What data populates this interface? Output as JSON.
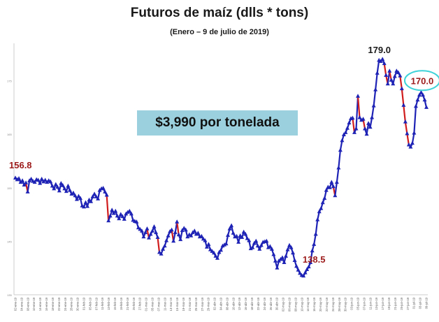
{
  "title": "Futuros de maíz (dlls * tons)",
  "subtitle": "(Enero – 9 de julio de 2019)",
  "price_note": "$3,990 por tonelada",
  "colors": {
    "line": "#1f23b5",
    "decline": "#d01c1c",
    "annot_dark_red": "#9c1a1a",
    "highlight_ring": "#3ed3d8",
    "box": "#9bd1de",
    "axis": "#cccccc"
  },
  "chart_data": {
    "type": "line",
    "title": "Futuros de maíz (dlls * tons)",
    "subtitle": "(Enero – 9 de julio de 2019)",
    "xlabel": "",
    "ylabel": "",
    "ylim": [
      135,
      182
    ],
    "yticks": [
      135,
      145,
      155,
      165,
      175
    ],
    "grid": false,
    "marker": "triangle",
    "note": "Descending segments drawn in red, others in blue",
    "x_tick_labels": [
      "02-ene-19",
      "04-ene-19",
      "08-ene-19",
      "10-ene-19",
      "14-ene-19",
      "16-ene-19",
      "18-ene-19",
      "22-ene-19",
      "24-ene-19",
      "28-ene-19",
      "30-ene-19",
      "01-feb-19",
      "05-feb-19",
      "07-feb-19",
      "11-feb-19",
      "13-feb-19",
      "15-feb-19",
      "19-feb-19",
      "21-feb-19",
      "25-feb-19",
      "27-feb-19",
      "01-mar-19",
      "05-mar-19",
      "07-mar-19",
      "11-mar-19",
      "13-mar-19",
      "15-mar-19",
      "19-mar-19",
      "21-mar-19",
      "25-mar-19",
      "27-mar-19",
      "29-mar-19",
      "02-abr-19",
      "04-abr-19",
      "08-abr-19",
      "10-abr-19",
      "12-abr-19",
      "16-abr-19",
      "18-abr-19",
      "22-abr-19",
      "24-abr-19",
      "26-abr-19",
      "30-abr-19",
      "02-may-19",
      "06-may-19",
      "08-may-19",
      "10-may-19",
      "14-may-19",
      "16-may-19",
      "20-may-19",
      "22-may-19",
      "24-may-19",
      "28-may-19",
      "30-may-19",
      "03-jun-19",
      "05-jun-19",
      "07-jun-19",
      "11-jun-19",
      "13-jun-19",
      "17-jun-19",
      "19-jun-19",
      "21-jun-19",
      "25-jun-19",
      "27-jun-19",
      "01-jul-19",
      "03-jul-19",
      "09-jul-19"
    ],
    "values": [
      156.8,
      156.5,
      156.7,
      156.0,
      156.3,
      155.5,
      155.9,
      154.2,
      156.3,
      156.6,
      156.2,
      156.0,
      156.5,
      156.4,
      155.8,
      156.6,
      156.1,
      156.4,
      156.0,
      156.3,
      156.1,
      155.3,
      154.8,
      155.6,
      155.1,
      154.4,
      155.8,
      155.4,
      154.8,
      154.3,
      155.3,
      154.5,
      153.8,
      154.0,
      153.5,
      152.8,
      153.4,
      153.0,
      151.6,
      151.4,
      152.2,
      151.5,
      152.7,
      152.4,
      153.3,
      153.8,
      153.3,
      152.9,
      154.5,
      154.8,
      154.9,
      154.2,
      153.6,
      148.8,
      149.7,
      150.8,
      150.2,
      150.6,
      149.7,
      149.2,
      150.0,
      149.6,
      149.1,
      150.1,
      150.4,
      150.6,
      150.1,
      148.9,
      148.7,
      148.6,
      147.5,
      147.2,
      146.9,
      145.8,
      146.6,
      147.3,
      145.6,
      146.3,
      146.9,
      147.7,
      146.6,
      145.7,
      142.9,
      142.6,
      143.5,
      144.1,
      145.1,
      146.0,
      146.8,
      147.1,
      145.0,
      146.6,
      148.6,
      146.2,
      145.3,
      147.0,
      147.4,
      147.1,
      145.8,
      146.2,
      146.0,
      146.6,
      146.9,
      146.3,
      146.5,
      145.8,
      145.9,
      145.4,
      145.1,
      143.9,
      144.4,
      143.4,
      143.1,
      142.8,
      142.2,
      141.8,
      142.9,
      143.3,
      144.1,
      144.3,
      144.5,
      146.1,
      147.3,
      147.9,
      146.5,
      145.8,
      145.9,
      144.8,
      146.0,
      145.7,
      146.7,
      146.3,
      145.5,
      145.1,
      143.6,
      143.8,
      144.6,
      145.0,
      144.1,
      143.5,
      144.2,
      144.8,
      144.9,
      145.0,
      143.8,
      144.0,
      143.5,
      142.5,
      141.3,
      140.0,
      141.3,
      141.6,
      141.9,
      141.0,
      142.2,
      143.4,
      144.2,
      143.8,
      142.8,
      141.4,
      140.3,
      139.6,
      139.0,
      138.6,
      138.5,
      139.1,
      139.7,
      140.2,
      141.0,
      143.2,
      144.4,
      146.3,
      149.0,
      150.5,
      151.1,
      152.2,
      153.0,
      154.5,
      155.1,
      155.0,
      156.0,
      155.2,
      153.5,
      156.0,
      158.7,
      162.0,
      163.8,
      164.9,
      165.3,
      166.1,
      167.1,
      167.9,
      168.0,
      165.3,
      166.0,
      172.1,
      168.1,
      167.6,
      167.8,
      166.0,
      165.0,
      167.0,
      166.3,
      168.1,
      170.3,
      173.3,
      176.4,
      178.8,
      178.6,
      179.0,
      178.2,
      176.0,
      174.4,
      176.8,
      175.1,
      174.4,
      175.8,
      176.8,
      176.5,
      175.9,
      173.5,
      170.4,
      167.3,
      165.1,
      163.0,
      162.6,
      163.3,
      165.2,
      170.2,
      171.4,
      172.3,
      172.8,
      172.3,
      171.4,
      170.0
    ],
    "annotations": [
      {
        "text": "156.8",
        "series_index": 0,
        "color": "#9c1a1a"
      },
      {
        "text": "138.5",
        "series_index": 170,
        "color": "#9c1a1a"
      },
      {
        "text": "179.0",
        "series_index": 208,
        "color": "#1a1a1a"
      },
      {
        "text": "170.0",
        "series_index": 230,
        "color": "#9c1a1a",
        "highlighted": true
      }
    ]
  }
}
